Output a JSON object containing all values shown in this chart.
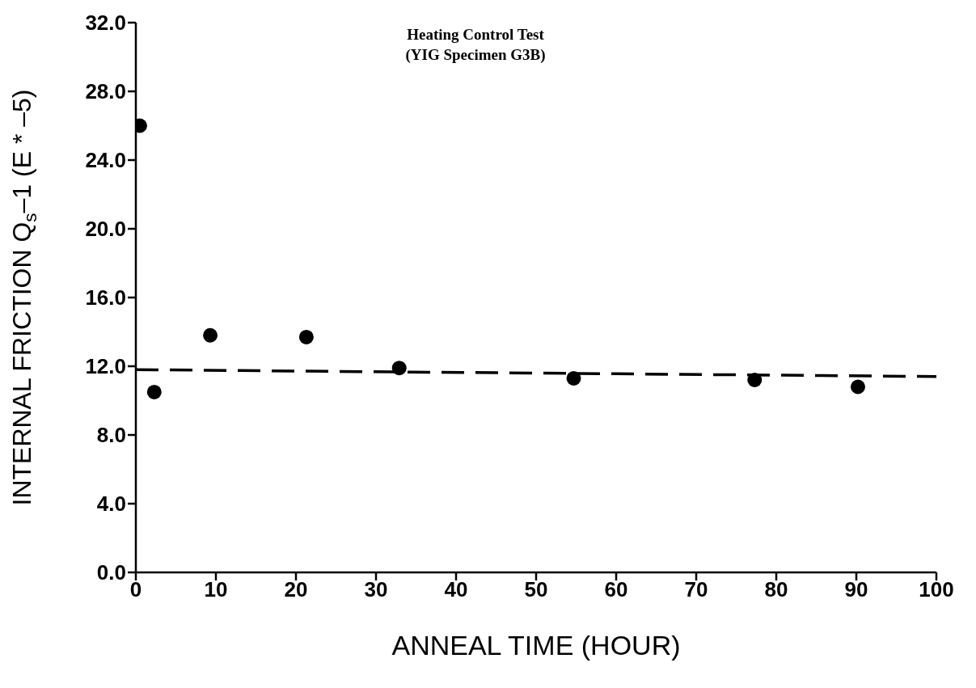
{
  "chart_data": {
    "type": "scatter",
    "title": "Heating Control Test",
    "subtitle": "(YIG Specimen G3B)",
    "xlabel": "ANNEAL TIME (HOUR)",
    "ylabel": "INTERNAL FRICTION Q$_{s}$–1 (E * –5)",
    "xlim": [
      0,
      100
    ],
    "xticks": [
      0,
      10,
      20,
      30,
      40,
      50,
      60,
      70,
      80,
      90,
      100
    ],
    "ylim": [
      0,
      32
    ],
    "yticks": [
      {
        "value": 0,
        "label": "0.0"
      },
      {
        "value": 4,
        "label": "4.0"
      },
      {
        "value": 8,
        "label": "8.0"
      },
      {
        "value": 12,
        "label": "12.0"
      },
      {
        "value": 16,
        "label": "16.0"
      },
      {
        "value": 20,
        "label": "20.0"
      },
      {
        "value": 24,
        "label": "24.0"
      },
      {
        "value": 28,
        "label": "28.0"
      },
      {
        "value": 32,
        "label": "32.0"
      }
    ],
    "grid": false,
    "legend": false,
    "series": [
      {
        "type": "scatter",
        "color": "#000000",
        "marker": "circle",
        "x": [
          0.5,
          2.3,
          9.3,
          21.3,
          32.9,
          54.7,
          77.3,
          90.2
        ],
        "values": [
          26.0,
          10.5,
          13.8,
          13.7,
          11.9,
          11.3,
          11.2,
          10.8
        ]
      },
      {
        "type": "line",
        "color": "#000000",
        "marker": "none",
        "line_style": "dashed",
        "x": [
          0,
          100
        ],
        "values": [
          11.8,
          11.4
        ]
      }
    ]
  }
}
